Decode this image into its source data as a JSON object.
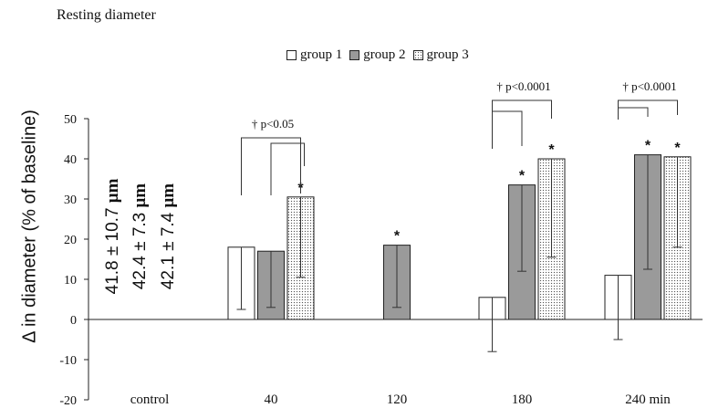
{
  "header": {
    "title": "Resting diameter"
  },
  "legend": [
    {
      "label": "group 1"
    },
    {
      "label": "group 2"
    },
    {
      "label": "group 3"
    }
  ],
  "resting": [
    {
      "value": "41.8 ± 10.7",
      "unit": "μm"
    },
    {
      "value": "42.4 ± 7.3",
      "unit": "μm"
    },
    {
      "value": "42.1 ± 7.4",
      "unit": "μm"
    }
  ],
  "chart_data": {
    "type": "bar",
    "ylabel": "Δ in diameter (% of baseline)",
    "ylim": [
      -20,
      50
    ],
    "yticks": [
      -20,
      -10,
      0,
      10,
      20,
      30,
      40,
      50
    ],
    "categories": [
      "control",
      "40",
      "120",
      "180",
      "240 min"
    ],
    "colors": {
      "group 1": "#ffffff",
      "group 2": "#9a9a9a",
      "group 3": "dotted"
    },
    "series": [
      {
        "name": "group 1",
        "values": [
          null,
          18,
          null,
          5.5,
          11
        ],
        "error_low": [
          null,
          2.5,
          null,
          -8,
          -5
        ],
        "error_high": [
          null,
          18,
          null,
          5.5,
          11
        ]
      },
      {
        "name": "group 2",
        "values": [
          null,
          17,
          18.5,
          33.5,
          41
        ],
        "error_low": [
          null,
          3,
          3,
          12,
          12.5
        ],
        "error_high": [
          null,
          17,
          18.5,
          33.5,
          41
        ]
      },
      {
        "name": "group 3",
        "values": [
          null,
          30.5,
          null,
          40,
          40.5
        ],
        "error_low": [
          null,
          10.5,
          null,
          15.5,
          18
        ],
        "error_high": [
          null,
          30.5,
          null,
          40,
          40.5
        ]
      }
    ],
    "significance_markers": [
      {
        "category": "40",
        "series": "group 3",
        "symbol": "*"
      },
      {
        "category": "120",
        "series": "group 2",
        "symbol": "*"
      },
      {
        "category": "180",
        "series": "group 2",
        "symbol": "*"
      },
      {
        "category": "180",
        "series": "group 3",
        "symbol": "*"
      },
      {
        "category": "240 min",
        "series": "group 2",
        "symbol": "*"
      },
      {
        "category": "240 min",
        "series": "group 3",
        "symbol": "*"
      }
    ],
    "annotations": [
      {
        "category": "40",
        "text": "† p<0.05"
      },
      {
        "category": "180",
        "text": "† p<0.0001"
      },
      {
        "category": "240 min",
        "text": "† p<0.0001"
      }
    ]
  }
}
